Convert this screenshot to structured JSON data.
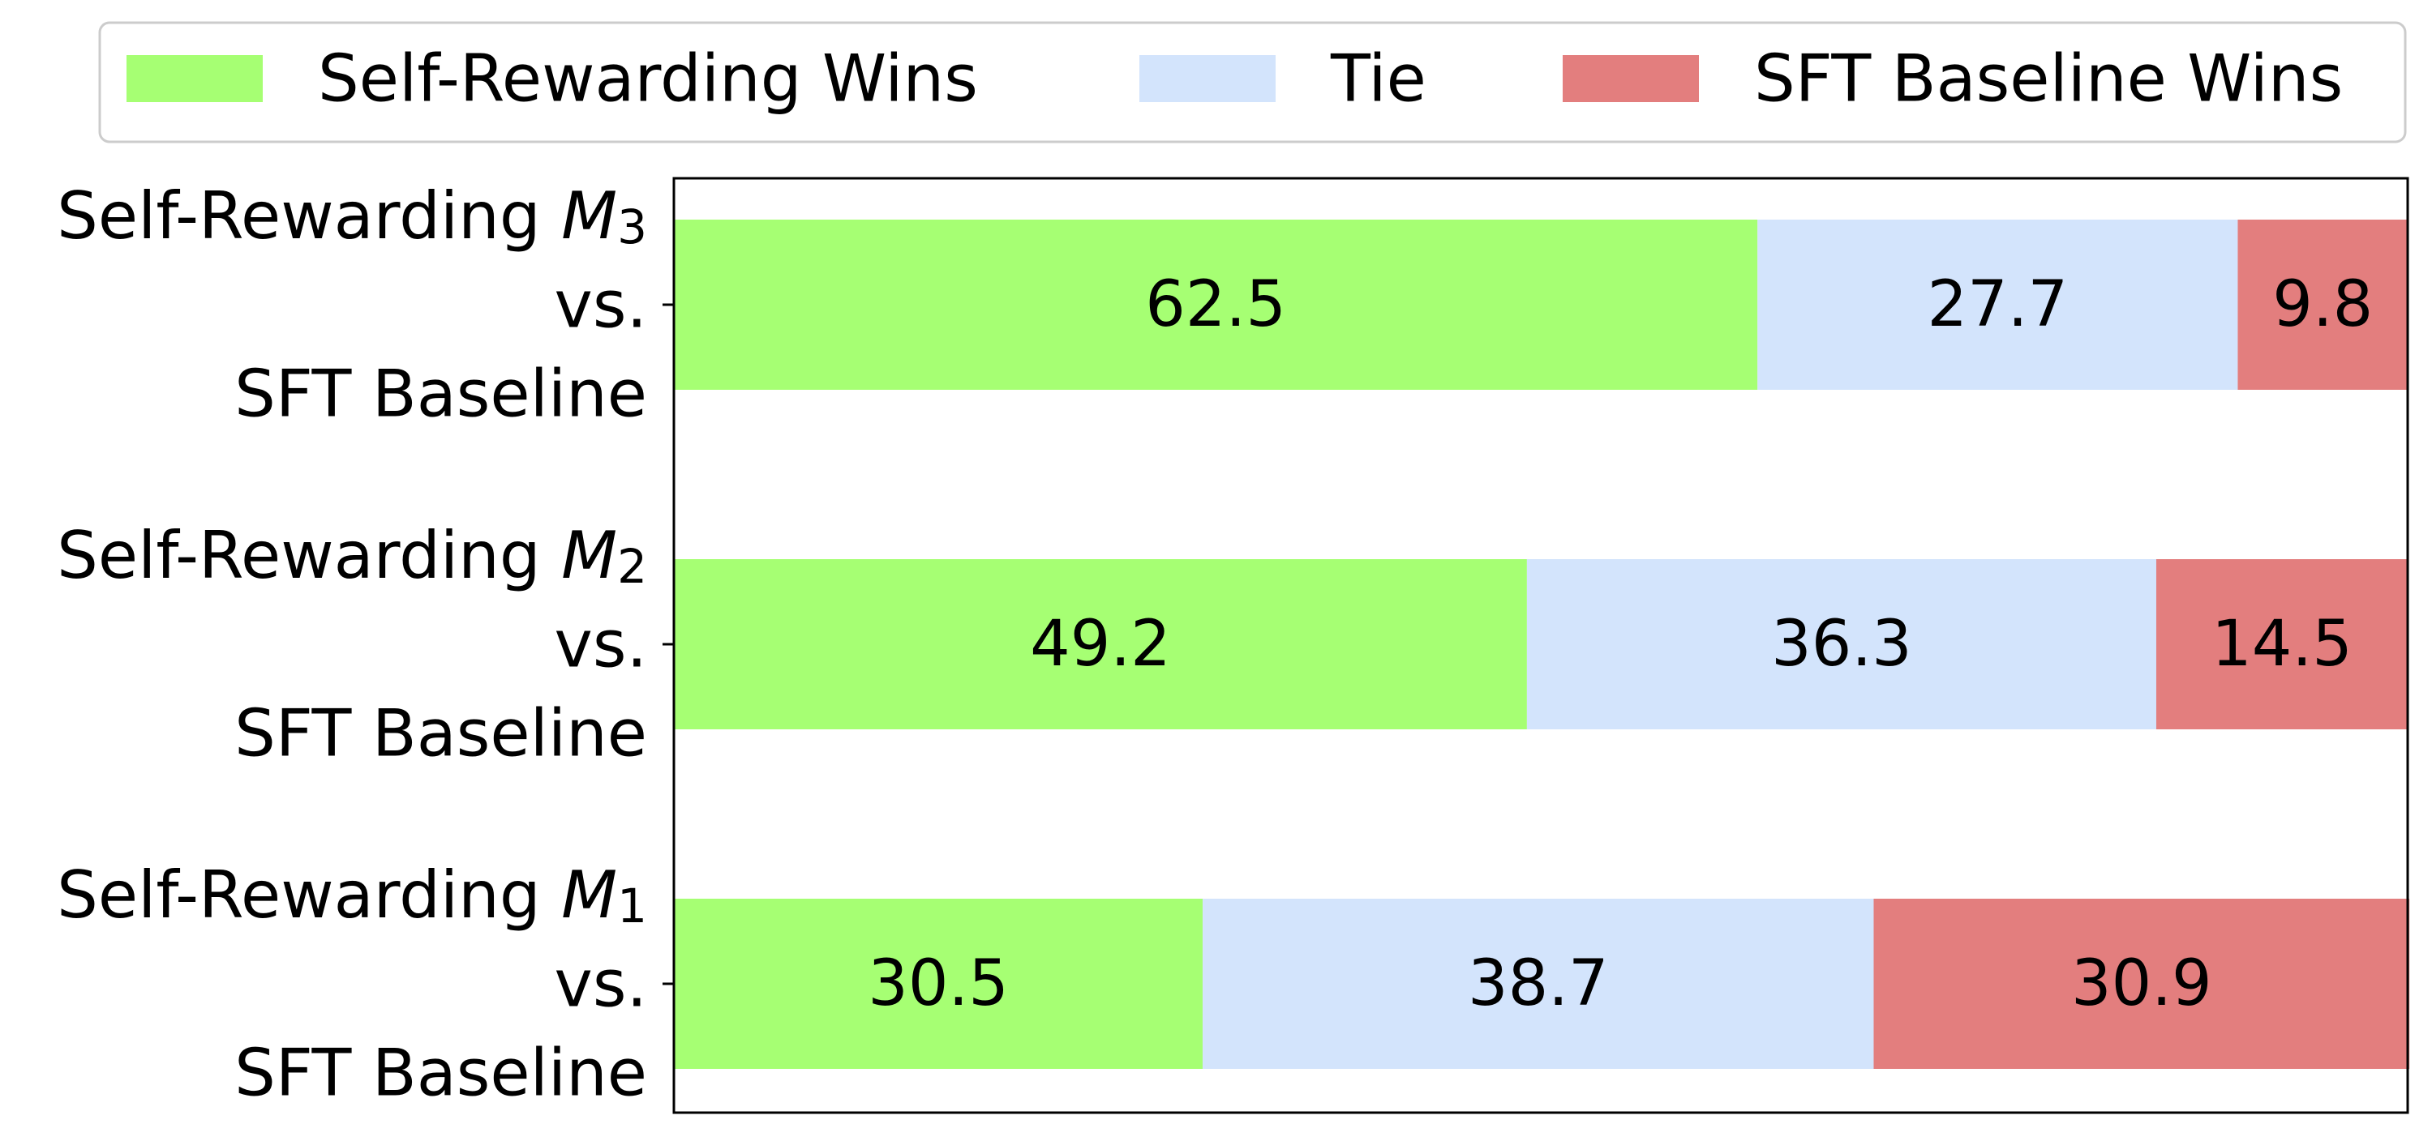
{
  "chart_data": {
    "type": "bar",
    "orientation": "horizontal",
    "stacked": true,
    "categories": [
      {
        "line1": "Self-Rewarding",
        "model_base": "M",
        "model_sub": "3",
        "line2": "vs.",
        "line3": "SFT Baseline"
      },
      {
        "line1": "Self-Rewarding",
        "model_base": "M",
        "model_sub": "2",
        "line2": "vs.",
        "line3": "SFT Baseline"
      },
      {
        "line1": "Self-Rewarding",
        "model_base": "M",
        "model_sub": "1",
        "line2": "vs.",
        "line3": "SFT Baseline"
      }
    ],
    "series": [
      {
        "name": "Self-Rewarding Wins",
        "color": "#a6ff73",
        "values": [
          62.5,
          49.2,
          30.5
        ],
        "labels": [
          "62.5",
          "49.2",
          "30.5"
        ]
      },
      {
        "name": "Tie",
        "color": "#d3e4fc",
        "values": [
          27.7,
          36.3,
          38.7
        ],
        "labels": [
          "27.7",
          "36.3",
          "38.7"
        ]
      },
      {
        "name": "SFT Baseline Wins",
        "color": "#e37e7e",
        "values": [
          9.8,
          14.5,
          30.9
        ],
        "labels": [
          "9.8",
          "14.5",
          "30.9"
        ]
      }
    ],
    "xlim": [
      0,
      100
    ],
    "legend_position": "top",
    "grid": false,
    "x_ticks_shown": false
  }
}
